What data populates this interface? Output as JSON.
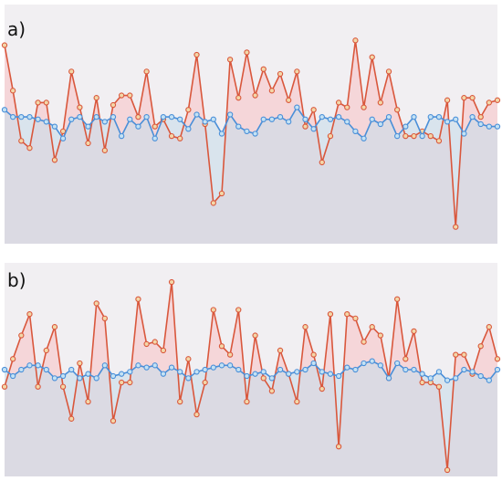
{
  "chart_data": [
    {
      "type": "line",
      "title": "a)",
      "ylim": [
        0,
        100
      ],
      "series": [
        {
          "color": "#d9573c",
          "fill": "#f9c5c8",
          "values": [
            83,
            64,
            43,
            40,
            59,
            59,
            35,
            47,
            72,
            57,
            42,
            61,
            39,
            58,
            62,
            62,
            53,
            72,
            49,
            52,
            45,
            44,
            56,
            79,
            50,
            17,
            21,
            77,
            61,
            80,
            62,
            73,
            64,
            71,
            60,
            72,
            49,
            56,
            34,
            45,
            59,
            57,
            85,
            57,
            78,
            59,
            72,
            56,
            45,
            45,
            47,
            45,
            43,
            60,
            7,
            61,
            61,
            53,
            59,
            60
          ]
        },
        {
          "color": "#4a8fd8",
          "fill": "#c9dcea",
          "values": [
            56,
            53,
            53,
            53,
            52,
            51,
            49,
            44,
            52,
            53,
            49,
            53,
            51,
            53,
            45,
            52,
            49,
            53,
            44,
            53,
            53,
            52,
            48,
            54,
            51,
            52,
            46,
            54,
            49,
            47,
            46,
            52,
            52,
            53,
            51,
            57,
            52,
            48,
            53,
            52,
            53,
            51,
            47,
            44,
            52,
            50,
            53,
            45,
            49,
            53,
            45,
            53,
            53,
            51,
            52,
            46,
            53,
            50,
            49,
            49
          ]
        }
      ]
    },
    {
      "type": "line",
      "title": "b)",
      "ylim": [
        0,
        100
      ],
      "series": [
        {
          "color": "#d9573c",
          "fill": "#f9c5c8",
          "values": [
            42,
            55,
            66,
            76,
            42,
            59,
            70,
            42,
            27,
            53,
            35,
            81,
            74,
            26,
            44,
            44,
            83,
            62,
            63,
            59,
            91,
            35,
            55,
            29,
            44,
            78,
            61,
            57,
            78,
            35,
            66,
            46,
            40,
            59,
            48,
            35,
            70,
            57,
            41,
            76,
            14,
            76,
            74,
            63,
            70,
            66,
            46,
            83,
            55,
            68,
            44,
            44,
            42,
            3,
            57,
            57,
            48,
            61,
            70,
            55
          ]
        },
        {
          "color": "#4a8fd8",
          "fill": "#c9dcea",
          "values": [
            50,
            47,
            50,
            52,
            52,
            50,
            46,
            47,
            50,
            46,
            48,
            46,
            52,
            47,
            48,
            49,
            52,
            51,
            52,
            48,
            51,
            49,
            46,
            49,
            50,
            51,
            52,
            52,
            50,
            47,
            48,
            49,
            46,
            50,
            48,
            49,
            50,
            53,
            49,
            48,
            47,
            51,
            50,
            53,
            54,
            52,
            46,
            53,
            50,
            50,
            48,
            46,
            49,
            45,
            46,
            50,
            49,
            47,
            45,
            50
          ]
        }
      ]
    }
  ]
}
